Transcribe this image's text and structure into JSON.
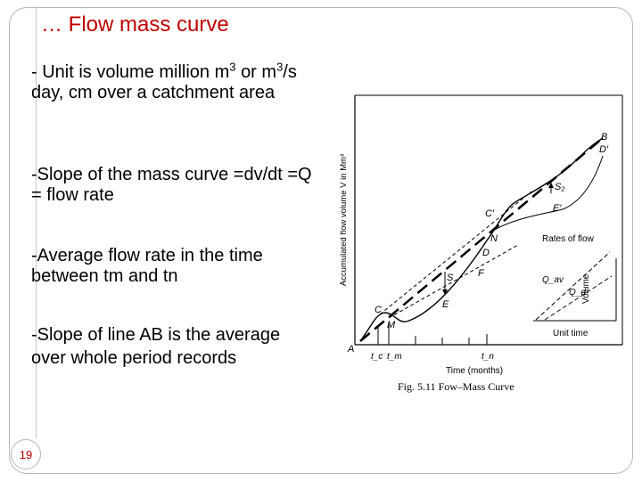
{
  "slide": {
    "title": "… Flow mass curve",
    "page_number": "19",
    "accent_color": "#c00000",
    "bullets": {
      "b1_pre": "- Unit is volume million m",
      "b1_sup1": "3",
      "b1_mid": "or m",
      "b1_sup2": "3",
      "b1_post": "/s day, cm over a catchment area",
      "b2": "-Slope of the mass curve =dv/dt =Q = flow rate",
      "b3": "-Average flow rate in the time between tm and tn",
      "b4": "-Slope of line AB is the average over whole period records"
    }
  },
  "figure": {
    "y_axis_label": "Accumulated flow volume V in Mm³",
    "x_axis_label": "Time (months)",
    "caption": "Fig. 5.11   Fow–Mass Curve",
    "points": {
      "A": "A",
      "B": "B",
      "C": "C",
      "C_prime": "C′",
      "D": "D",
      "D_prime": "D′",
      "E": "E",
      "E_prime": "E′",
      "F": "F",
      "M": "M",
      "N": "N"
    },
    "labels": {
      "S": "S",
      "S2": "S₂",
      "tc": "t_c",
      "tm": "t_m",
      "tn": "t_n",
      "rates_of_flow": "Rates of flow",
      "volume": "Volume",
      "unit_time": "Unit time",
      "Qav": "Q_av",
      "Qd": "Q_d"
    }
  }
}
